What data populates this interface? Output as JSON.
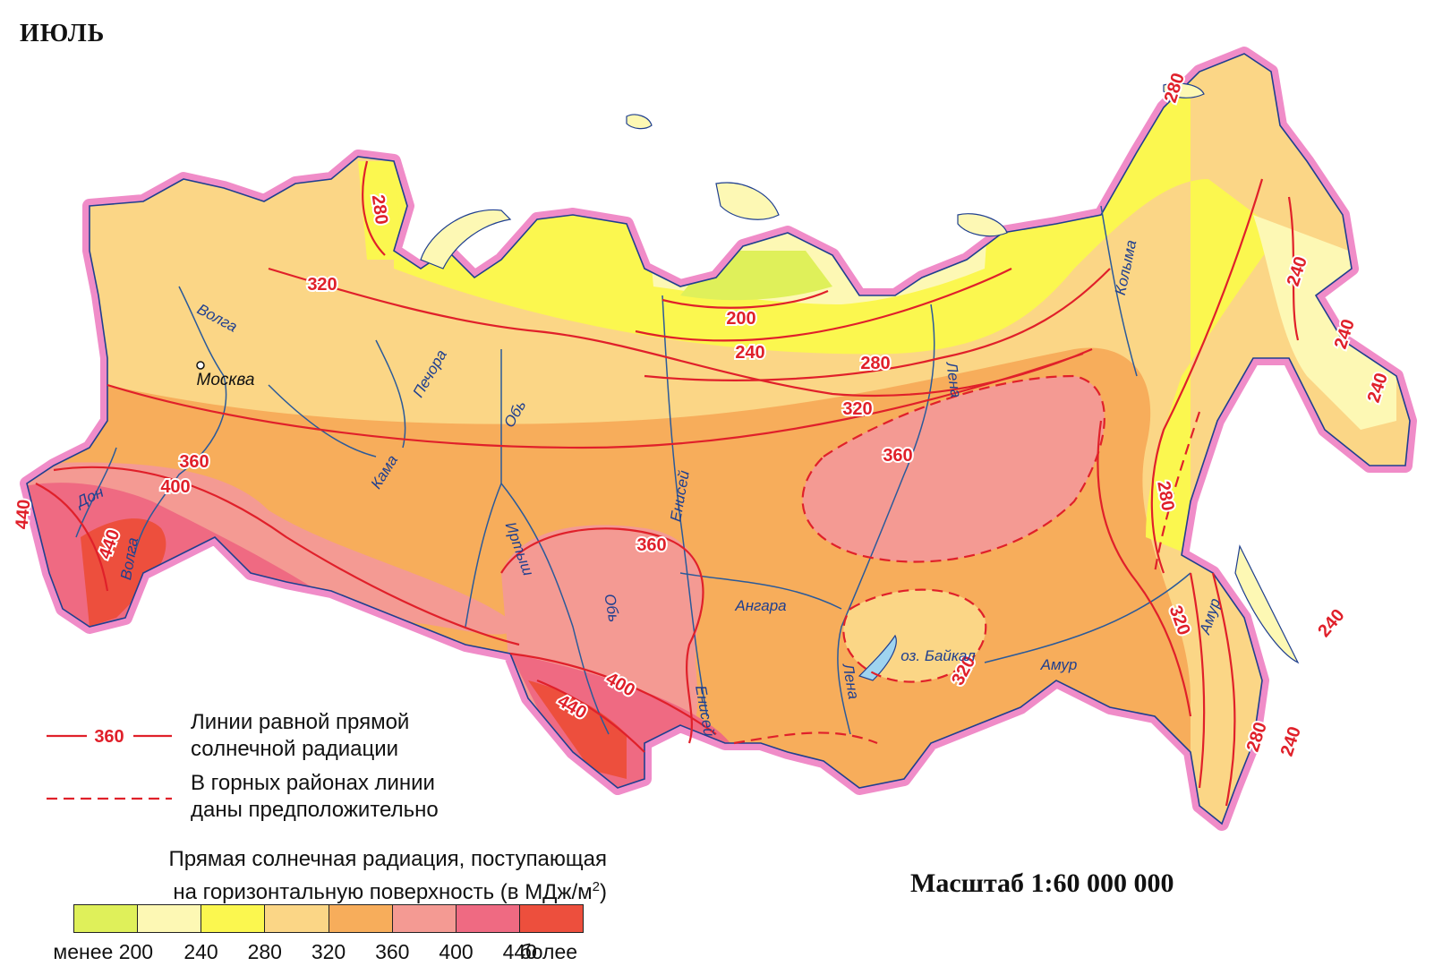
{
  "title": "ИЮЛЬ",
  "scale_text": "Масштаб 1:60 000 000",
  "legend": {
    "solid_line_label": "360",
    "solid_line_text": [
      "Линии равной прямой",
      "солнечной радиации"
    ],
    "dashed_line_text": [
      "В горных районах линии",
      "даны предположительно"
    ],
    "scale_title_line1": "Прямая солнечная радиация, поступающая",
    "scale_title_line2": "на горизонтальную поверхность (в МДж/м",
    "scale_title_sup": "2",
    "scale_title_end": ")",
    "classes": [
      {
        "color": "#dff05a"
      },
      {
        "color": "#fdf8b4"
      },
      {
        "color": "#fbf74f"
      },
      {
        "color": "#fbd686"
      },
      {
        "color": "#f7ad5b"
      },
      {
        "color": "#f49a93"
      },
      {
        "color": "#ef6a82"
      },
      {
        "color": "#ed4f3d"
      }
    ],
    "tick_labels": [
      "менее 200",
      "240",
      "280",
      "320",
      "360",
      "400",
      "440",
      "более"
    ]
  },
  "isoline_labels": [
    {
      "text": "280"
    },
    {
      "text": "280"
    },
    {
      "text": "320"
    },
    {
      "text": "200"
    },
    {
      "text": "240"
    },
    {
      "text": "280"
    },
    {
      "text": "320"
    },
    {
      "text": "360"
    },
    {
      "text": "360"
    },
    {
      "text": "400"
    },
    {
      "text": "440"
    },
    {
      "text": "440"
    },
    {
      "text": "360"
    },
    {
      "text": "400"
    },
    {
      "text": "440"
    },
    {
      "text": "320"
    },
    {
      "text": "280"
    },
    {
      "text": "320"
    },
    {
      "text": "240"
    },
    {
      "text": "240"
    },
    {
      "text": "240"
    },
    {
      "text": "240"
    },
    {
      "text": "280"
    },
    {
      "text": "240"
    }
  ],
  "place_labels": [
    {
      "text": "Волга"
    },
    {
      "text": "Москва"
    },
    {
      "text": "Печора"
    },
    {
      "text": "Кама"
    },
    {
      "text": "Обь"
    },
    {
      "text": "Енисей"
    },
    {
      "text": "Лена"
    },
    {
      "text": "Колыма"
    },
    {
      "text": "Дон"
    },
    {
      "text": "Волга"
    },
    {
      "text": "Иртыш"
    },
    {
      "text": "Обь"
    },
    {
      "text": "Ангара"
    },
    {
      "text": "Енисей"
    },
    {
      "text": "Лена"
    },
    {
      "text": "оз. Байкал"
    },
    {
      "text": "Амур"
    },
    {
      "text": "Амур"
    }
  ],
  "colors": {
    "border": "#f08cc8",
    "isoline": "#e0202a",
    "river": "#2a5a9a",
    "outline": "#1f3f8f"
  }
}
